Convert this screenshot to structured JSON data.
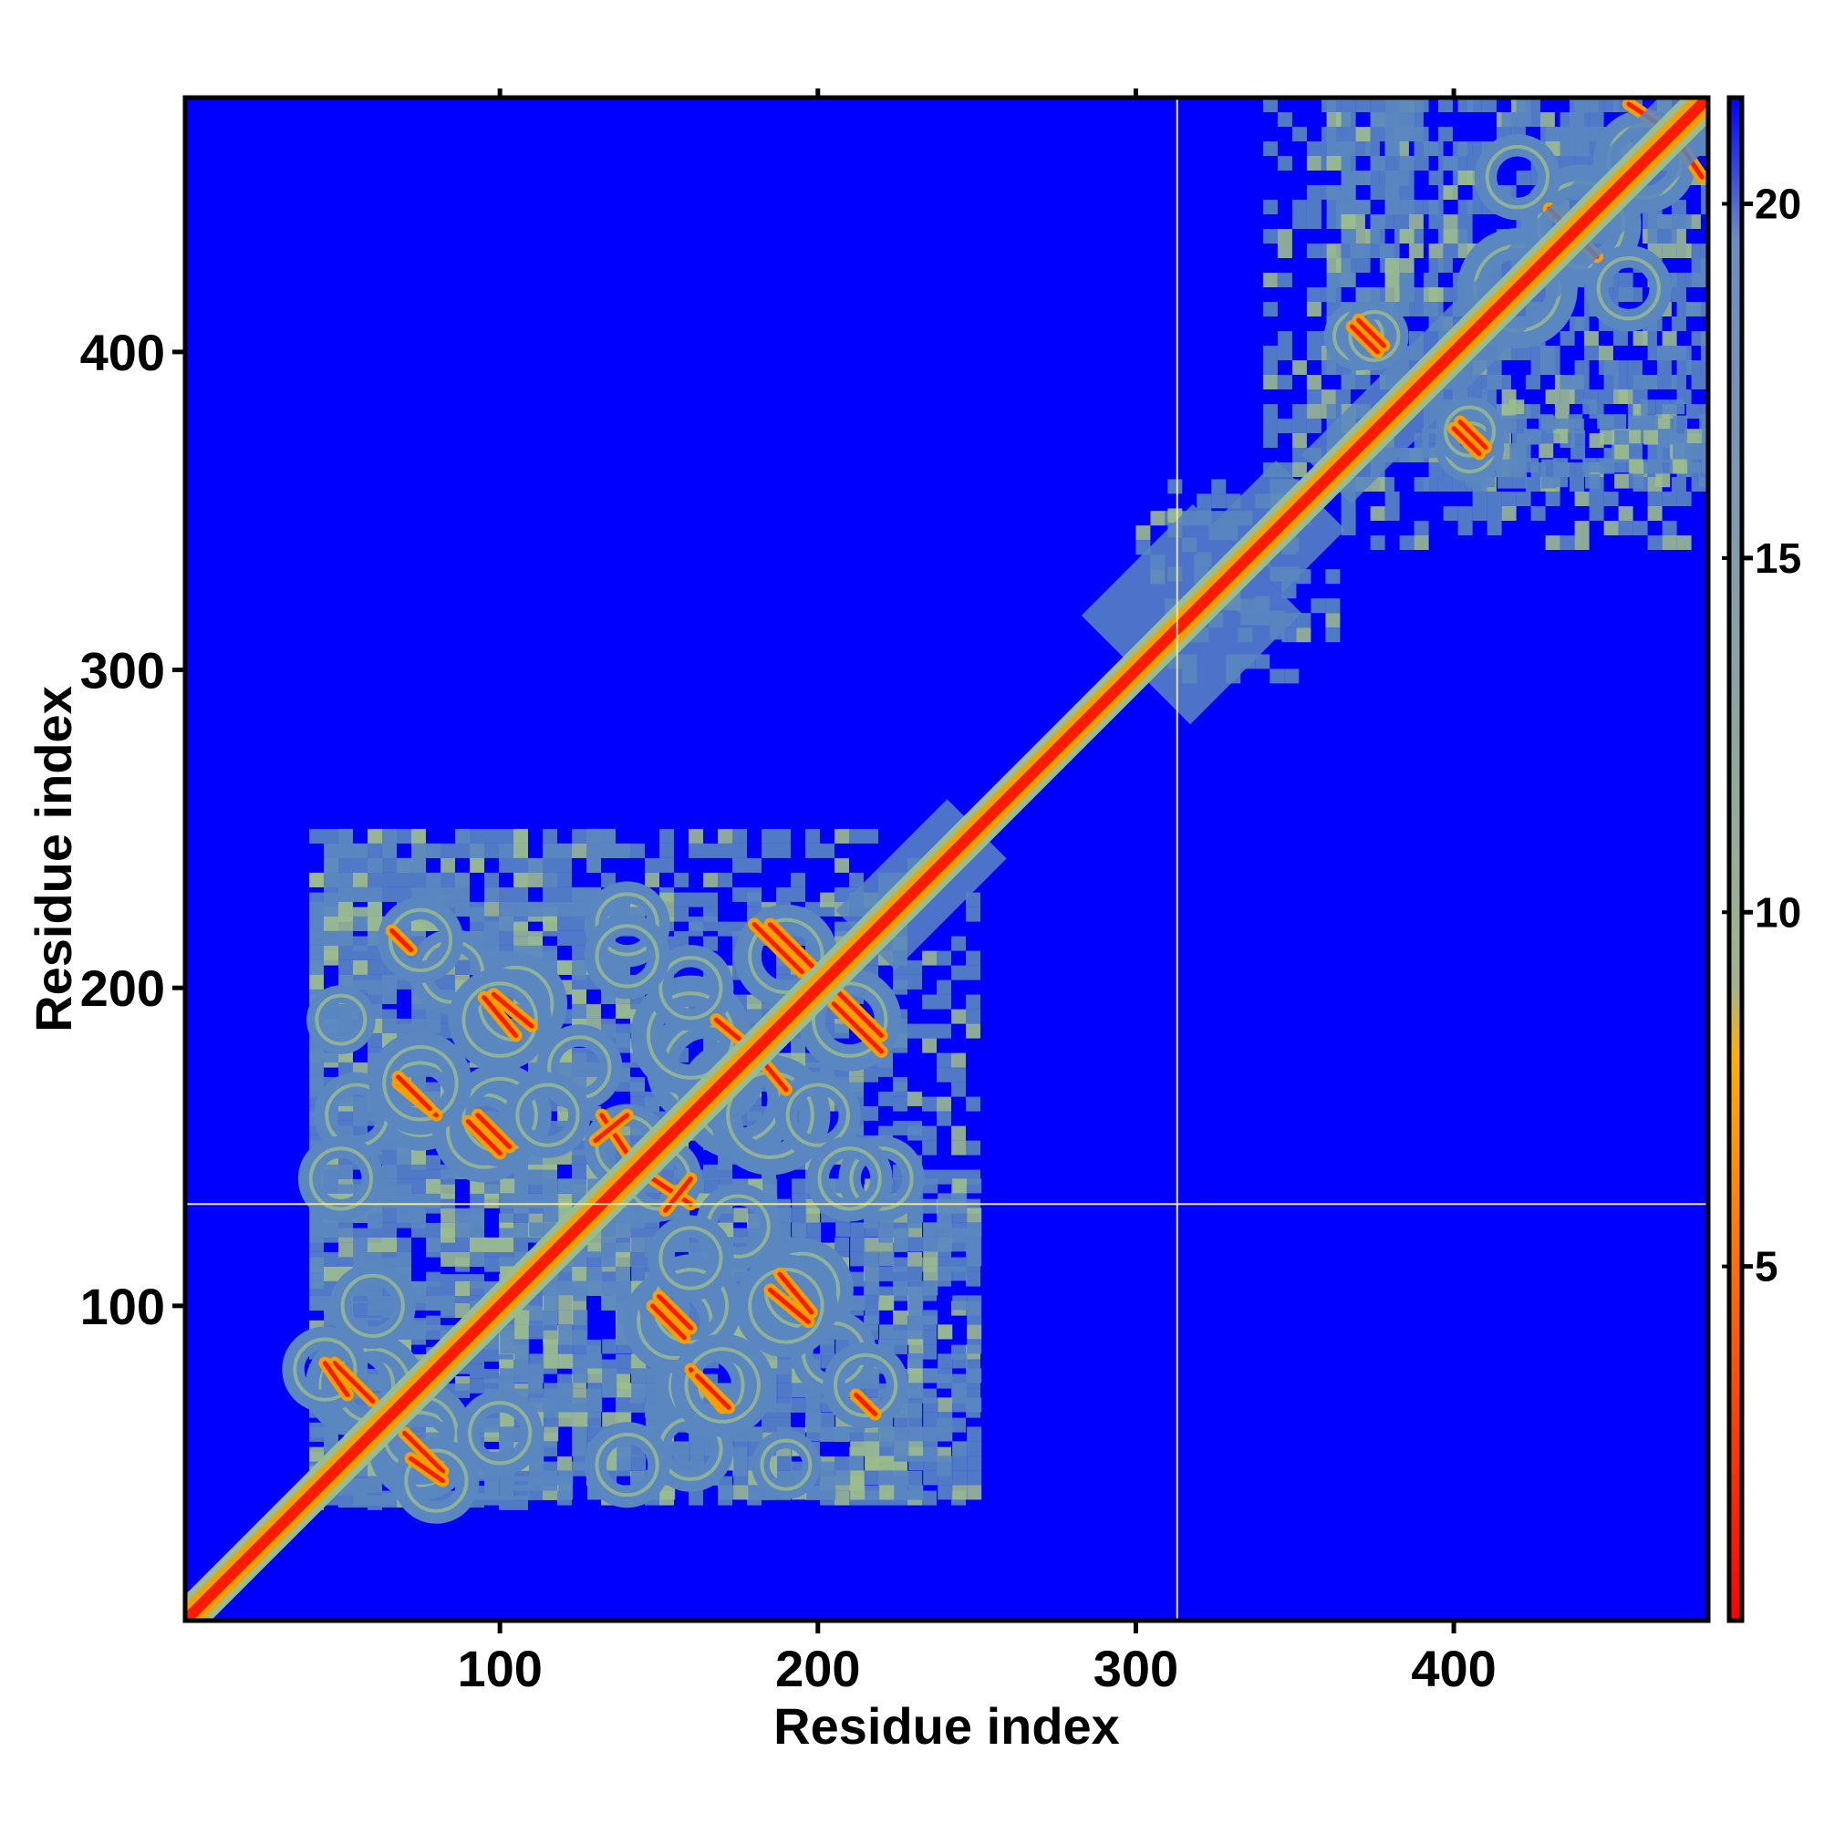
{
  "chart_data": {
    "type": "heatmap",
    "title": "",
    "xlabel": "Residue index",
    "ylabel": "Residue index",
    "xlim": [
      1,
      480
    ],
    "ylim": [
      1,
      480
    ],
    "x_ticks": [
      100,
      200,
      300,
      400
    ],
    "y_ticks": [
      100,
      200,
      300,
      400
    ],
    "colorbar": {
      "range": [
        0,
        21.5
      ],
      "ticks": [
        5,
        10,
        15,
        20
      ],
      "stops": [
        {
          "value": 0,
          "color": "#ff0000"
        },
        {
          "value": 4,
          "color": "#ff5a00"
        },
        {
          "value": 8,
          "color": "#ffb000"
        },
        {
          "value": 9,
          "color": "#9fb48c"
        },
        {
          "value": 19.5,
          "color": "#6a8dc4"
        },
        {
          "value": 21.5,
          "color": "#0000ff"
        }
      ]
    },
    "background_value": 21.5,
    "background_color": "#0000ff",
    "contact_color": "#5a87c0",
    "contact_edge_color": "#9bbd8c",
    "diagonal_color": "#ff1a00",
    "diagonal_halo_color": "#f5a000",
    "grid_lines": {
      "x": 313,
      "y": 132,
      "color": "#e6e6a0"
    },
    "diagonal_regions": [
      {
        "from": 1,
        "to": 480,
        "width": 2
      },
      {
        "from": 215,
        "to": 250,
        "width": 12
      },
      {
        "from": 300,
        "to": 335,
        "width": 22
      },
      {
        "from": 335,
        "to": 355,
        "width": 14
      },
      {
        "from": 360,
        "to": 480,
        "width": 10
      }
    ],
    "contact_regions": [
      {
        "x": [
          40,
          100
        ],
        "y": [
          40,
          110
        ]
      },
      {
        "x": [
          40,
          230
        ],
        "y": [
          40,
          250
        ]
      },
      {
        "x": [
          100,
          250
        ],
        "y": [
          40,
          140
        ]
      },
      {
        "x": [
          40,
          140
        ],
        "y": [
          100,
          250
        ]
      },
      {
        "x": [
          340,
          480
        ],
        "y": [
          360,
          480
        ]
      },
      {
        "x": [
          360,
          385
        ],
        "y": [
          390,
          480
        ]
      },
      {
        "x": [
          400,
          480
        ],
        "y": [
          360,
          380
        ]
      },
      {
        "x": [
          300,
          360
        ],
        "y": [
          310,
          350
        ]
      }
    ],
    "contact_blobs": [
      {
        "x": 55,
        "y": 75,
        "r": 12
      },
      {
        "x": 75,
        "y": 60,
        "r": 12
      },
      {
        "x": 80,
        "y": 45,
        "r": 10
      },
      {
        "x": 60,
        "y": 100,
        "r": 10
      },
      {
        "x": 75,
        "y": 165,
        "r": 12
      },
      {
        "x": 95,
        "y": 155,
        "r": 12
      },
      {
        "x": 105,
        "y": 195,
        "r": 12
      },
      {
        "x": 55,
        "y": 160,
        "r": 10
      },
      {
        "x": 85,
        "y": 205,
        "r": 10
      },
      {
        "x": 50,
        "y": 190,
        "r": 8
      },
      {
        "x": 160,
        "y": 100,
        "r": 12
      },
      {
        "x": 170,
        "y": 75,
        "r": 12
      },
      {
        "x": 190,
        "y": 100,
        "r": 12
      },
      {
        "x": 215,
        "y": 75,
        "r": 10
      },
      {
        "x": 140,
        "y": 50,
        "r": 10
      },
      {
        "x": 190,
        "y": 50,
        "r": 8
      },
      {
        "x": 165,
        "y": 175,
        "r": 14
      },
      {
        "x": 185,
        "y": 160,
        "r": 14
      },
      {
        "x": 190,
        "y": 210,
        "r": 12
      },
      {
        "x": 210,
        "y": 190,
        "r": 12
      },
      {
        "x": 140,
        "y": 220,
        "r": 10
      },
      {
        "x": 160,
        "y": 200,
        "r": 10
      },
      {
        "x": 150,
        "y": 140,
        "r": 10
      },
      {
        "x": 125,
        "y": 175,
        "r": 10
      },
      {
        "x": 210,
        "y": 140,
        "r": 10
      },
      {
        "x": 115,
        "y": 160,
        "r": 10
      },
      {
        "x": 370,
        "y": 405,
        "r": 8
      },
      {
        "x": 405,
        "y": 375,
        "r": 8
      },
      {
        "x": 420,
        "y": 420,
        "r": 14
      },
      {
        "x": 440,
        "y": 440,
        "r": 14
      },
      {
        "x": 460,
        "y": 460,
        "r": 12
      },
      {
        "x": 420,
        "y": 455,
        "r": 10
      },
      {
        "x": 455,
        "y": 420,
        "r": 10
      }
    ],
    "secondary_lines": [
      {
        "x": [
          48,
          60
        ],
        "y": [
          82,
          70
        ]
      },
      {
        "x": [
          72,
          82
        ],
        "y": [
          52,
          45
        ]
      },
      {
        "x": [
          68,
          80
        ],
        "y": [
          170,
          160
        ]
      },
      {
        "x": [
          98,
          110
        ],
        "y": [
          198,
          188
        ]
      },
      {
        "x": [
          93,
          103
        ],
        "y": [
          160,
          150
        ]
      },
      {
        "x": [
          148,
          158
        ],
        "y": [
          100,
          90
        ]
      },
      {
        "x": [
          162,
          172
        ],
        "y": [
          78,
          68
        ]
      },
      {
        "x": [
          185,
          197
        ],
        "y": [
          105,
          95
        ]
      },
      {
        "x": [
          212,
          218
        ],
        "y": [
          72,
          66
        ]
      },
      {
        "x": [
          185,
          200
        ],
        "y": [
          220,
          205
        ]
      },
      {
        "x": [
          205,
          220
        ],
        "y": [
          195,
          180
        ]
      },
      {
        "x": [
          168,
          180
        ],
        "y": [
          190,
          180
        ]
      },
      {
        "x": [
          148,
          160
        ],
        "y": [
          140,
          132
        ]
      },
      {
        "x": [
          130,
          140
        ],
        "y": [
          152,
          160
        ]
      },
      {
        "x": [
          368,
          376
        ],
        "y": [
          408,
          400
        ]
      },
      {
        "x": [
          402,
          410
        ],
        "y": [
          378,
          370
        ]
      },
      {
        "x": [
          430,
          440
        ],
        "y": [
          445,
          435
        ]
      },
      {
        "x": [
          455,
          470
        ],
        "y": [
          478,
          468
        ]
      }
    ]
  }
}
